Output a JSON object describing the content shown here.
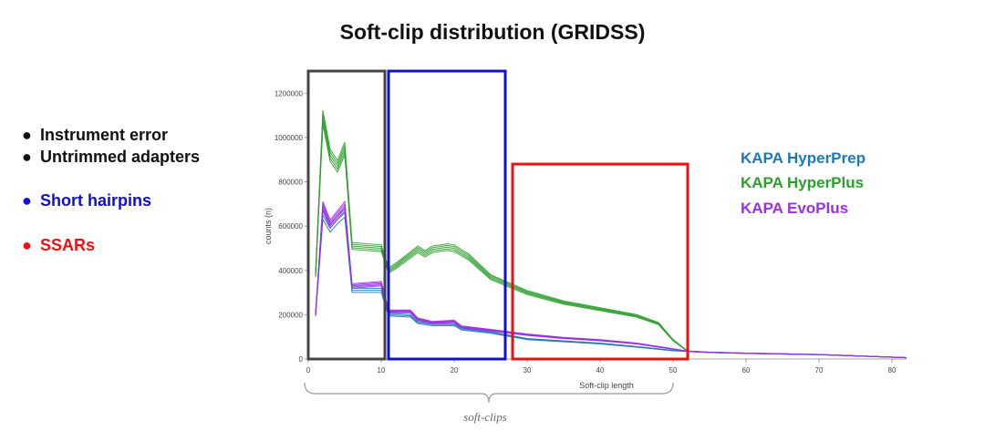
{
  "title": "Soft-clip distribution (GRIDSS)",
  "annotations": {
    "bullet": "●",
    "notes": [
      {
        "text": "Instrument error",
        "color": "#111111"
      },
      {
        "text": "Untrimmed adapters",
        "color": "#111111"
      },
      {
        "text": "Short hairpins",
        "color": "#1010cc"
      },
      {
        "text": "SSARs",
        "color": "#ee1111"
      }
    ],
    "brace_label": "soft-clips"
  },
  "legend": [
    {
      "label": "KAPA HyperPrep",
      "color": "#1f77b4"
    },
    {
      "label": "KAPA HyperPlus",
      "color": "#2ca02c"
    },
    {
      "label": "KAPA EvoPlus",
      "color": "#9b30e8"
    }
  ],
  "chart_data": {
    "type": "line",
    "xlabel": "Soft-clip length",
    "ylabel": "counts (n)",
    "xlim": [
      0,
      82
    ],
    "ylim": [
      0,
      1300000
    ],
    "xticks": [
      0,
      10,
      20,
      30,
      40,
      50,
      60,
      70,
      80
    ],
    "yticks": [
      0,
      200000,
      400000,
      600000,
      800000,
      1000000,
      1200000
    ],
    "series": [
      {
        "name": "KAPA HyperPrep",
        "color": "#1f77b4",
        "replicates": 3,
        "spread": 0.03,
        "x": [
          1,
          2,
          3,
          4,
          5,
          6,
          10,
          11,
          14,
          15,
          17,
          20,
          21,
          25,
          30,
          35,
          40,
          45,
          50,
          52,
          55,
          60,
          70,
          82
        ],
        "y": [
          200000,
          650000,
          590000,
          630000,
          660000,
          310000,
          310000,
          200000,
          195000,
          165000,
          155000,
          155000,
          135000,
          120000,
          90000,
          80000,
          70000,
          55000,
          38000,
          35000,
          30000,
          26000,
          20000,
          6000
        ]
      },
      {
        "name": "KAPA HyperPlus",
        "color": "#2ca02c",
        "replicates": 5,
        "spread": 0.03,
        "x": [
          1,
          2,
          3,
          4,
          5,
          6,
          10,
          11,
          12,
          13,
          15,
          16,
          17,
          19,
          20,
          22,
          25,
          30,
          35,
          40,
          45,
          48,
          50,
          52,
          55,
          60,
          70,
          82
        ],
        "y": [
          380000,
          1090000,
          920000,
          870000,
          950000,
          510000,
          500000,
          400000,
          420000,
          445000,
          495000,
          475000,
          495000,
          505000,
          500000,
          460000,
          370000,
          300000,
          255000,
          225000,
          195000,
          160000,
          85000,
          35000,
          30000,
          26000,
          20000,
          6000
        ]
      },
      {
        "name": "KAPA EvoPlus",
        "color": "#9b30e8",
        "replicates": 5,
        "spread": 0.03,
        "x": [
          1,
          2,
          3,
          4,
          5,
          6,
          10,
          11,
          14,
          15,
          17,
          20,
          21,
          25,
          30,
          35,
          40,
          45,
          50,
          52,
          55,
          60,
          70,
          82
        ],
        "y": [
          200000,
          690000,
          610000,
          650000,
          690000,
          330000,
          340000,
          215000,
          215000,
          180000,
          165000,
          170000,
          145000,
          130000,
          110000,
          95000,
          85000,
          70000,
          45000,
          35000,
          30000,
          26000,
          20000,
          6000
        ]
      }
    ],
    "highlight_boxes": [
      {
        "x0": 0,
        "x1": 10.5,
        "color": "#444444",
        "y_top": 1300000
      },
      {
        "x0": 11,
        "x1": 27,
        "color": "#1010cc",
        "y_top": 1300000
      },
      {
        "x0": 28,
        "x1": 52,
        "color": "#ee1111",
        "y_top": 880000
      }
    ],
    "brace_range": [
      -0.5,
      50
    ]
  }
}
